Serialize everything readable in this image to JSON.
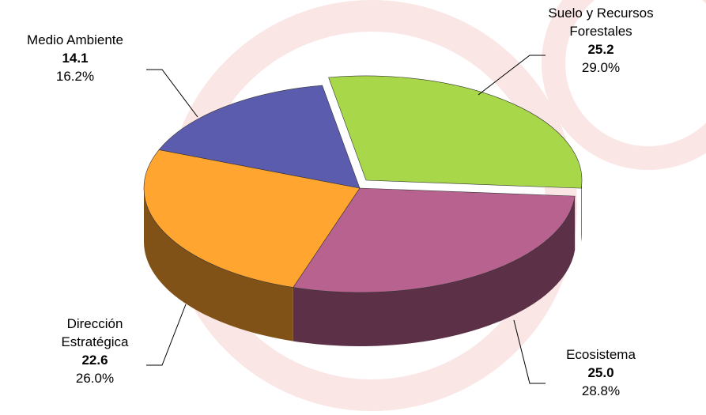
{
  "chart_data": {
    "type": "pie3d",
    "categories": [
      "Suelo y Recursos Forestales",
      "Ecosistema",
      "Dirección Estratégica",
      "Medio Ambiente"
    ],
    "values": [
      25.2,
      25.0,
      22.6,
      14.1
    ],
    "value_labels": [
      "25.2",
      "25.0",
      "22.6",
      "14.1"
    ],
    "percent_labels": [
      "29.0%",
      "28.8%",
      "26.0%",
      "16.2%"
    ],
    "colors": [
      "#a8d84a",
      "#b8628f",
      "#ffa530",
      "#5c5cae"
    ]
  }
}
